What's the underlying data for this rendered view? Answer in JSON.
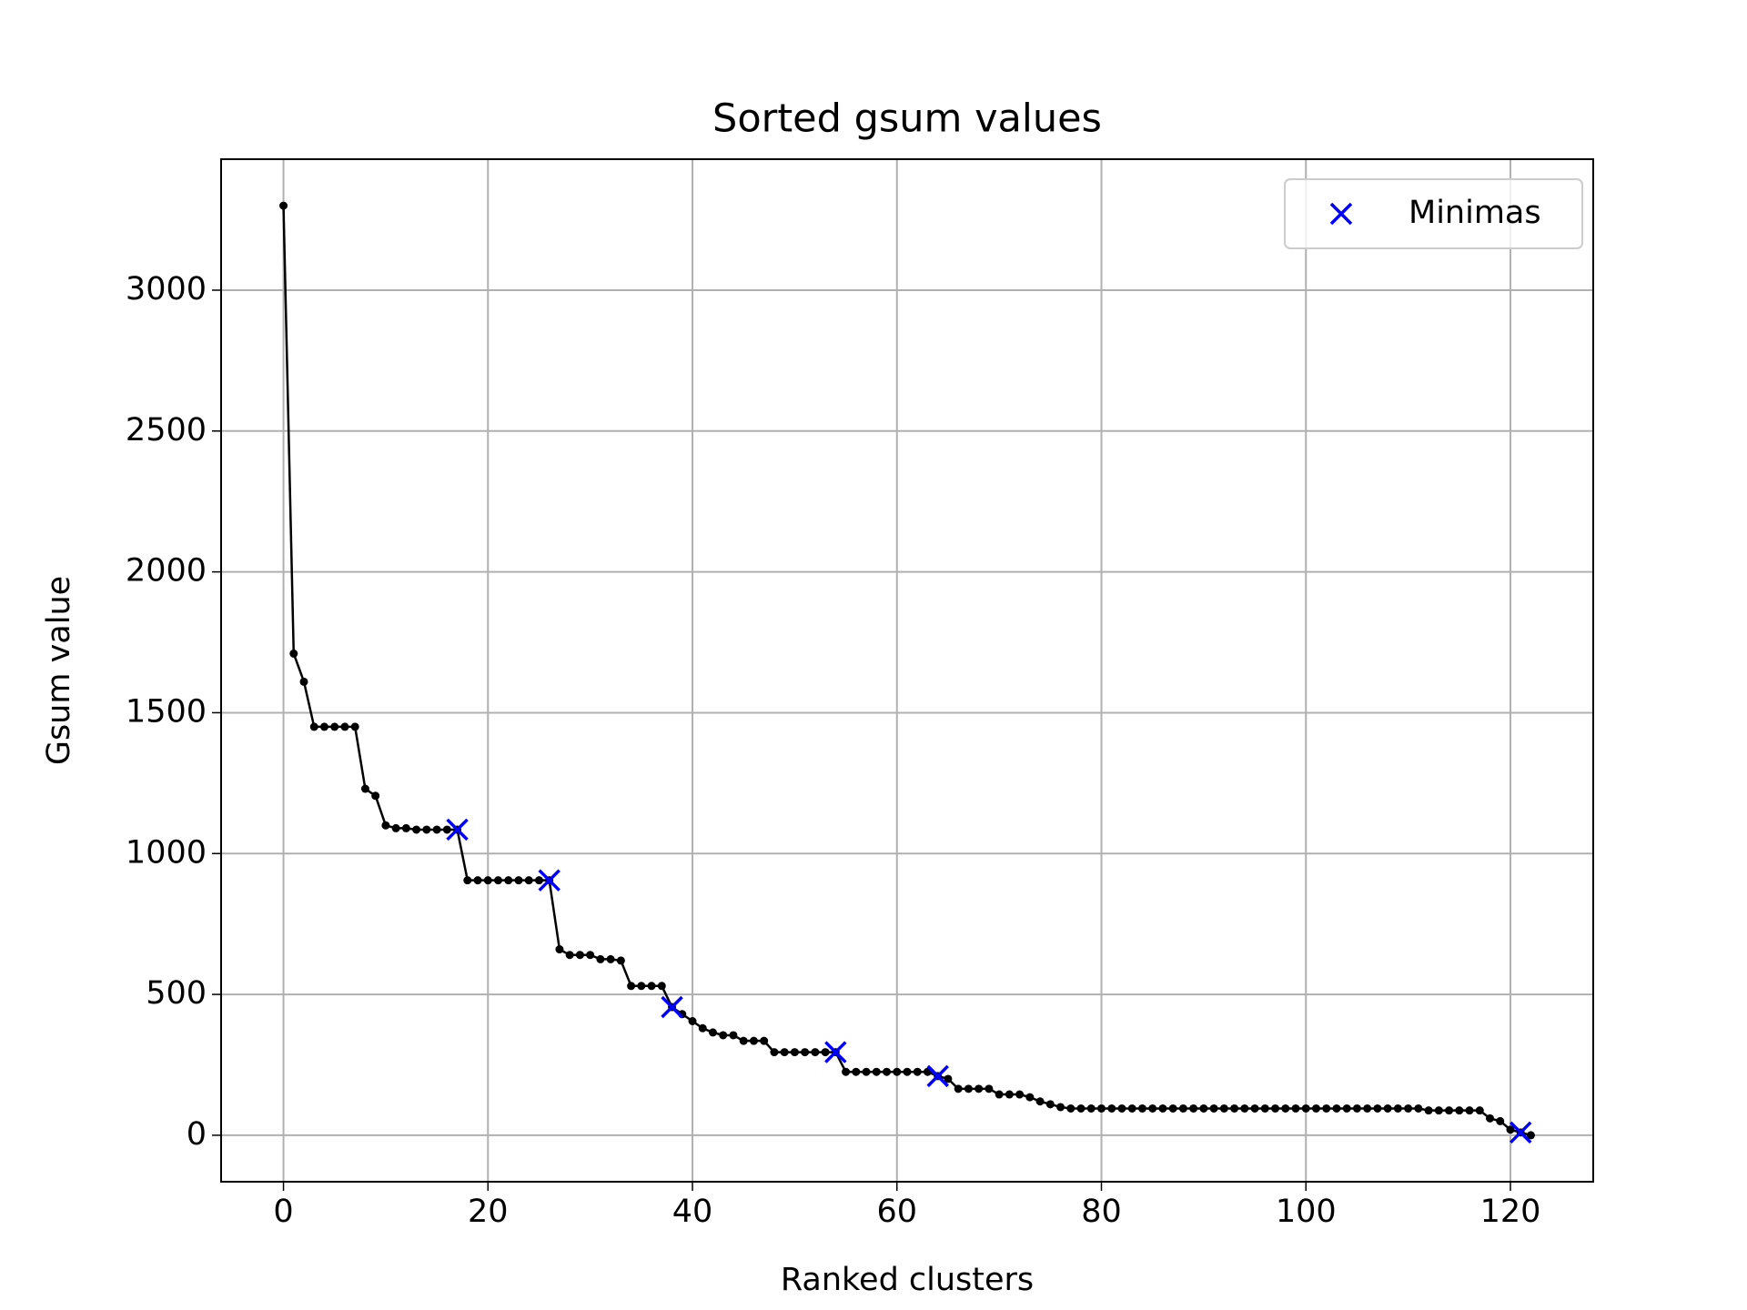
{
  "chart_data": {
    "type": "line",
    "title": "Sorted gsum values",
    "x_label": "Ranked clusters",
    "y_label": "Gsum value",
    "x": [
      0,
      1,
      2,
      3,
      4,
      5,
      6,
      7,
      8,
      9,
      10,
      11,
      12,
      13,
      14,
      15,
      16,
      17,
      18,
      19,
      20,
      21,
      22,
      23,
      24,
      25,
      26,
      27,
      28,
      29,
      30,
      31,
      32,
      33,
      34,
      35,
      36,
      37,
      38,
      39,
      40,
      41,
      42,
      43,
      44,
      45,
      46,
      47,
      48,
      49,
      50,
      51,
      52,
      53,
      54,
      55,
      56,
      57,
      58,
      59,
      60,
      61,
      62,
      63,
      64,
      65,
      66,
      67,
      68,
      69,
      70,
      71,
      72,
      73,
      74,
      75,
      76,
      77,
      78,
      79,
      80,
      81,
      82,
      83,
      84,
      85,
      86,
      87,
      88,
      89,
      90,
      91,
      92,
      93,
      94,
      95,
      96,
      97,
      98,
      99,
      100,
      101,
      102,
      103,
      104,
      105,
      106,
      107,
      108,
      109,
      110,
      111,
      112,
      113,
      114,
      115,
      116,
      117,
      118,
      119,
      120,
      121,
      122
    ],
    "series": [
      {
        "color": "#000000",
        "marker": "dot",
        "values": [
          3300,
          1710,
          1610,
          1450,
          1450,
          1450,
          1450,
          1450,
          1230,
          1205,
          1100,
          1090,
          1090,
          1085,
          1085,
          1085,
          1085,
          1085,
          905,
          905,
          905,
          905,
          905,
          905,
          905,
          905,
          905,
          660,
          640,
          640,
          640,
          625,
          625,
          620,
          530,
          530,
          530,
          530,
          455,
          430,
          405,
          380,
          365,
          355,
          355,
          335,
          335,
          335,
          295,
          295,
          295,
          295,
          295,
          295,
          295,
          225,
          225,
          225,
          225,
          225,
          225,
          225,
          225,
          225,
          210,
          200,
          165,
          165,
          165,
          165,
          145,
          145,
          145,
          135,
          120,
          110,
          100,
          95,
          95,
          95,
          95,
          95,
          95,
          95,
          95,
          95,
          95,
          95,
          95,
          95,
          95,
          95,
          95,
          95,
          95,
          95,
          95,
          95,
          95,
          95,
          95,
          95,
          95,
          95,
          95,
          95,
          95,
          95,
          95,
          95,
          95,
          95,
          88,
          88,
          88,
          88,
          88,
          88,
          60,
          50,
          20,
          10,
          0
        ]
      },
      {
        "name": "Minimas",
        "color": "#0000ff",
        "marker": "x",
        "x": [
          17,
          26,
          38,
          54,
          64,
          121
        ],
        "values": [
          1085,
          905,
          455,
          295,
          210,
          10
        ]
      }
    ],
    "xlim": [
      -6.1,
      128.1
    ],
    "ylim": [
      -165,
      3465
    ],
    "xticks": [
      0,
      20,
      40,
      60,
      80,
      100,
      120
    ],
    "yticks": [
      0,
      500,
      1000,
      1500,
      2000,
      2500,
      3000
    ],
    "grid": true,
    "legend": "upper right"
  }
}
